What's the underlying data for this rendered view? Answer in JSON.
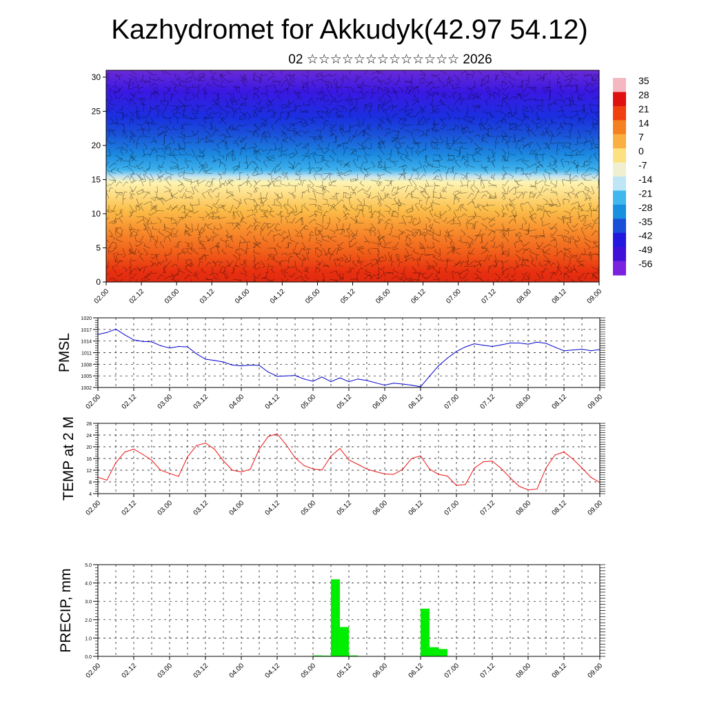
{
  "title": "Kazhydromet for Akkudyk(42.97 54.12)",
  "subtitle": "02 ☆☆☆☆☆☆☆☆☆☆☆☆☆ 2026",
  "time_ticks": [
    "02.00",
    "02.12",
    "03.00",
    "03.12",
    "04.00",
    "04.12",
    "05.00",
    "05.12",
    "06.00",
    "06.12",
    "07.00",
    "07.12",
    "08.00",
    "08.12",
    "09.00"
  ],
  "chart_data": [
    {
      "type": "heatmap",
      "name": "cross-section",
      "y_ticks": [
        "0",
        "5",
        "10",
        "15",
        "20",
        "25",
        "30"
      ],
      "ylim": [
        0,
        31
      ],
      "colorbar_labels": [
        "35",
        "28",
        "21",
        "14",
        "7",
        "0",
        "-7",
        "-14",
        "-21",
        "-28",
        "-35",
        "-42",
        "-49",
        "-56"
      ],
      "colorbar_colors": [
        "#f5b8c0",
        "#e01010",
        "#f04010",
        "#f58020",
        "#fab040",
        "#fde080",
        "#f0f0d0",
        "#bfe6f5",
        "#40b8ee",
        "#1890e0",
        "#1a50d8",
        "#2218e0",
        "#4010d8",
        "#7b22e0"
      ],
      "overlay": "wind barbs"
    },
    {
      "type": "line",
      "ylabel": "PMSL",
      "y_ticks": [
        "1002",
        "1005",
        "1008",
        "1011",
        "1014",
        "1017",
        "1020"
      ],
      "ylim": [
        1002,
        1020
      ],
      "color": "#0000cc",
      "x": [
        "02.00",
        "02.03",
        "02.06",
        "02.09",
        "02.12",
        "02.15",
        "02.18",
        "02.21",
        "03.00",
        "03.03",
        "03.06",
        "03.09",
        "03.12",
        "03.15",
        "03.18",
        "03.21",
        "04.00",
        "04.03",
        "04.06",
        "04.09",
        "04.12",
        "04.15",
        "04.18",
        "04.21",
        "05.00",
        "05.03",
        "05.06",
        "05.09",
        "05.12",
        "05.15",
        "05.18",
        "05.21",
        "06.00",
        "06.03",
        "06.06",
        "06.09",
        "06.12",
        "06.15",
        "06.18",
        "06.21",
        "07.00",
        "07.03",
        "07.06",
        "07.09",
        "07.12",
        "07.15",
        "07.18",
        "07.21",
        "08.00",
        "08.03",
        "08.06",
        "08.09",
        "08.12",
        "08.15",
        "08.18",
        "08.21",
        "09.00"
      ],
      "values": [
        1015.7,
        1016.2,
        1017.1,
        1015.6,
        1014.3,
        1013.9,
        1013.8,
        1012.8,
        1012.2,
        1012.6,
        1012.5,
        1010.7,
        1009.3,
        1009.0,
        1008.6,
        1007.8,
        1007.6,
        1007.8,
        1007.7,
        1006.0,
        1004.9,
        1005.0,
        1005.1,
        1004.2,
        1003.6,
        1004.7,
        1003.5,
        1004.5,
        1003.5,
        1004.2,
        1003.8,
        1003.2,
        1002.6,
        1003.1,
        1002.9,
        1002.6,
        1002.2,
        1004.9,
        1007.6,
        1009.6,
        1011.3,
        1012.5,
        1013.3,
        1012.9,
        1012.6,
        1013.0,
        1013.5,
        1013.5,
        1013.2,
        1013.7,
        1013.4,
        1012.4,
        1011.5,
        1011.7,
        1011.9,
        1011.5,
        1011.8
      ]
    },
    {
      "type": "line",
      "ylabel": "TEMP at 2 M",
      "y_ticks": [
        "4",
        "8",
        "12",
        "16",
        "20",
        "24",
        "28"
      ],
      "ylim": [
        4,
        28
      ],
      "color": "#ee1111",
      "x": [
        "02.00",
        "02.03",
        "02.06",
        "02.09",
        "02.12",
        "02.15",
        "02.18",
        "02.21",
        "03.00",
        "03.03",
        "03.06",
        "03.09",
        "03.12",
        "03.15",
        "03.18",
        "03.21",
        "04.00",
        "04.03",
        "04.06",
        "04.09",
        "04.12",
        "04.15",
        "04.18",
        "04.21",
        "05.00",
        "05.03",
        "05.06",
        "05.09",
        "05.12",
        "05.15",
        "05.18",
        "05.21",
        "06.00",
        "06.03",
        "06.06",
        "06.09",
        "06.12",
        "06.15",
        "06.18",
        "06.21",
        "07.00",
        "07.03",
        "07.06",
        "07.09",
        "07.12",
        "07.15",
        "07.18",
        "07.21",
        "08.00",
        "08.03",
        "08.06",
        "08.09",
        "08.12",
        "08.15",
        "08.18",
        "08.21",
        "09.00"
      ],
      "values": [
        9.6,
        8.6,
        14.6,
        18.2,
        19.2,
        17.4,
        15.4,
        12.0,
        10.9,
        9.9,
        16.6,
        20.4,
        21.3,
        19.2,
        15.2,
        12.0,
        11.4,
        12.3,
        19.2,
        23.5,
        24.4,
        20.7,
        16.2,
        13.6,
        12.4,
        12.1,
        16.8,
        19.4,
        15.5,
        14.0,
        12.4,
        11.5,
        10.7,
        10.6,
        12.3,
        16.0,
        16.9,
        12.4,
        10.6,
        10.0,
        6.8,
        7.1,
        12.7,
        14.9,
        15.1,
        12.6,
        9.4,
        6.5,
        5.3,
        5.6,
        12.8,
        17.2,
        18.2,
        15.8,
        12.8,
        9.6,
        7.8
      ]
    },
    {
      "type": "bar",
      "ylabel": "PRECIP, mm",
      "y_ticks": [
        "0.0",
        "1.0",
        "2.0",
        "3.0",
        "4.0",
        "5.0"
      ],
      "ylim": [
        0,
        5
      ],
      "color": "#00ee00",
      "x": [
        "04.21",
        "05.00",
        "05.03",
        "05.06",
        "05.09",
        "05.12",
        "05.15",
        "06.09",
        "06.12",
        "06.15",
        "06.18"
      ],
      "values": [
        0.02,
        0.05,
        0.04,
        4.2,
        1.6,
        0.05,
        0.02,
        0.02,
        2.6,
        0.5,
        0.4
      ]
    }
  ]
}
